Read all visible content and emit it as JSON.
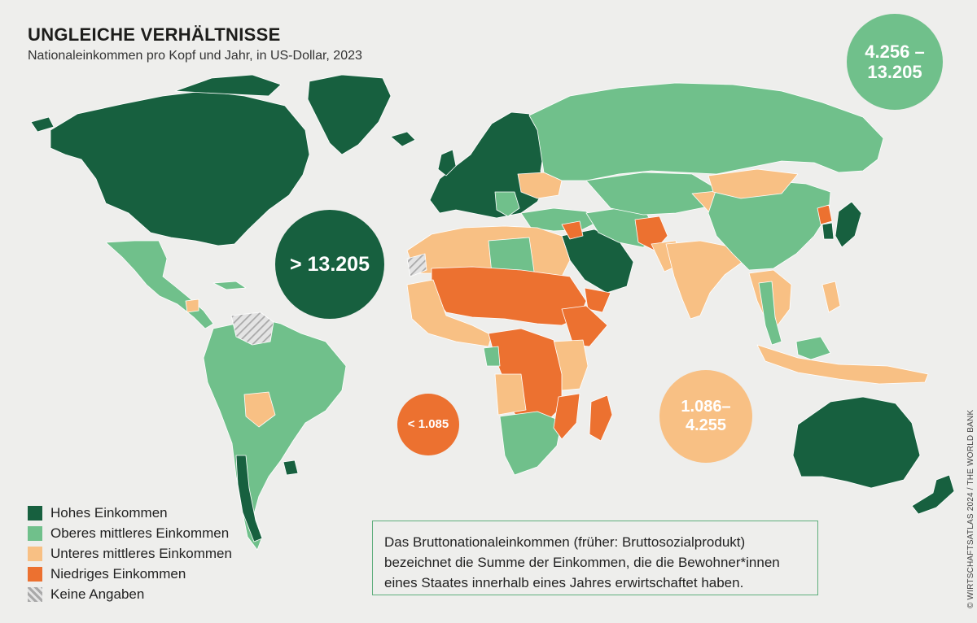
{
  "header": {
    "title": "UNGLEICHE VERHÄLTNISSE",
    "subtitle": "Nationaleinkommen pro Kopf und Jahr, in US-Dollar, 2023"
  },
  "colors": {
    "high": "#17603f",
    "upper_middle": "#70c08b",
    "lower_middle": "#f8c084",
    "low": "#ec7130",
    "no_data": "#bdbdbd",
    "background": "#eeeeec",
    "note_border": "#5fae7c"
  },
  "bubbles": {
    "high": "> 13.205",
    "upper_middle": "4.256 –\n13.205",
    "lower_middle": "1.086–\n4.255",
    "low": "< 1.085"
  },
  "legend": {
    "items": [
      {
        "key": "high",
        "label": "Hohes Einkommen"
      },
      {
        "key": "upper_middle",
        "label": "Oberes mittleres Einkommen"
      },
      {
        "key": "lower_middle",
        "label": "Unteres mittleres Einkommen"
      },
      {
        "key": "low",
        "label": "Niedriges Einkommen"
      },
      {
        "key": "no_data",
        "label": "Keine Angaben"
      }
    ]
  },
  "note": "Das Bruttonationaleinkommen (früher: Bruttosozialprodukt) bezeichnet die Summe der Einkommen, die die Bewohner*innen eines Staates innerhalb eines Jahres erwirtschaftet haben.",
  "credit": "© WIRTSCHAFTSATLAS 2024 / THE WORLD BANK"
}
